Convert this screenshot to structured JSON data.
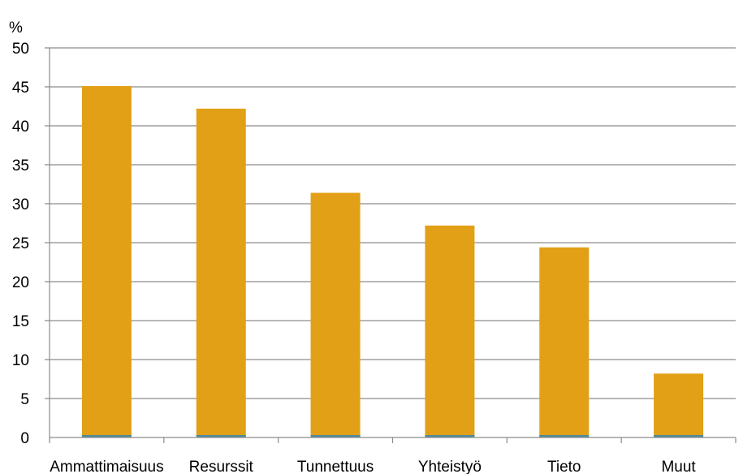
{
  "chart_data": {
    "type": "bar",
    "ylabel": "%",
    "categories": [
      "Ammattimaisuus",
      "Resurssit",
      "Tunnettuus",
      "Yhteistyö",
      "Tieto",
      "Muut"
    ],
    "values": [
      45.1,
      42.2,
      31.4,
      27.2,
      24.4,
      8.2
    ],
    "ylim": [
      0,
      50
    ],
    "yticks": [
      "0",
      "5",
      "10",
      "15",
      "20",
      "25",
      "30",
      "35",
      "40",
      "45",
      "50"
    ],
    "grid": true,
    "legend": "none",
    "colors": {
      "bar": "#E2A017",
      "bar_base": "#4F8A9A",
      "grid": "#8C8C8C",
      "axis": "#8C8C8C"
    }
  }
}
